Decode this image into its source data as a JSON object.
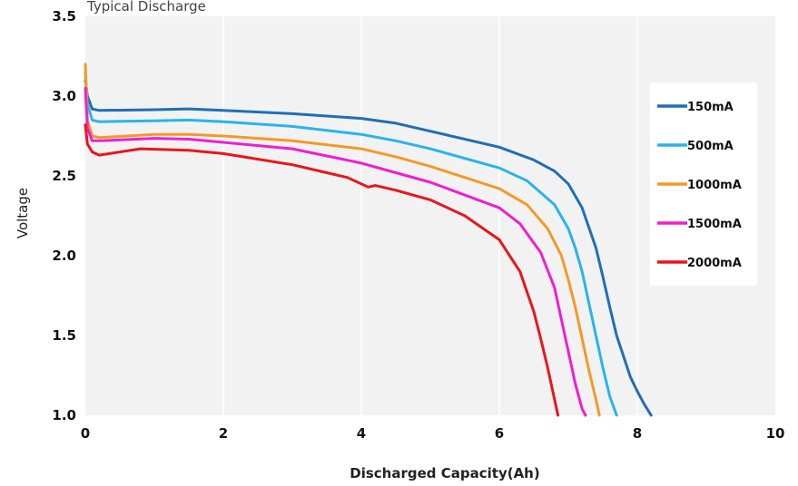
{
  "chart_data": {
    "type": "line",
    "title": "Typical Discharge",
    "xlabel": "Discharged Capacity(Ah)",
    "ylabel": "Voltage",
    "xlim": [
      0,
      10
    ],
    "ylim": [
      1.0,
      3.5
    ],
    "xticks": [
      "0",
      "2",
      "4",
      "6",
      "8",
      "10"
    ],
    "yticks": [
      "1.0",
      "1.5",
      "2.0",
      "2.5",
      "3.0",
      "3.5"
    ],
    "grid": "vertical",
    "plot_background": "#f2f2f2",
    "legend_position": "right",
    "series": [
      {
        "name": "150mA",
        "color": "#1f6fb5",
        "x": [
          0,
          0.03,
          0.1,
          0.2,
          1,
          1.5,
          2,
          3,
          4,
          4.5,
          5,
          6,
          6.5,
          6.8,
          7.0,
          7.2,
          7.4,
          7.5,
          7.6,
          7.7,
          7.8,
          7.9,
          8.0,
          8.1,
          8.2
        ],
        "y": [
          3.1,
          3.0,
          2.92,
          2.91,
          2.915,
          2.92,
          2.91,
          2.89,
          2.86,
          2.83,
          2.78,
          2.68,
          2.6,
          2.53,
          2.45,
          2.3,
          2.05,
          1.87,
          1.68,
          1.5,
          1.37,
          1.24,
          1.15,
          1.07,
          1.0
        ]
      },
      {
        "name": "500mA",
        "color": "#28b4ea",
        "x": [
          0,
          0.03,
          0.1,
          0.2,
          1,
          1.5,
          2,
          3,
          4,
          4.5,
          5,
          6,
          6.4,
          6.8,
          7.0,
          7.1,
          7.2,
          7.3,
          7.4,
          7.5,
          7.6,
          7.7
        ],
        "y": [
          3.15,
          2.95,
          2.85,
          2.84,
          2.845,
          2.85,
          2.84,
          2.81,
          2.76,
          2.72,
          2.67,
          2.55,
          2.47,
          2.32,
          2.17,
          2.05,
          1.9,
          1.7,
          1.5,
          1.3,
          1.12,
          1.0
        ]
      },
      {
        "name": "1000mA",
        "color": "#f39a26",
        "x": [
          0,
          0.03,
          0.1,
          0.2,
          1,
          1.5,
          2,
          3,
          4,
          4.5,
          5,
          6,
          6.4,
          6.7,
          6.9,
          7.0,
          7.1,
          7.2,
          7.3,
          7.4,
          7.45
        ],
        "y": [
          3.2,
          2.85,
          2.75,
          2.74,
          2.76,
          2.76,
          2.75,
          2.72,
          2.67,
          2.62,
          2.56,
          2.42,
          2.32,
          2.17,
          2.0,
          1.85,
          1.68,
          1.48,
          1.28,
          1.1,
          1.0
        ]
      },
      {
        "name": "1500mA",
        "color": "#ee1fd0",
        "x": [
          0,
          0.03,
          0.1,
          0.2,
          1,
          1.5,
          2,
          3,
          4,
          4.5,
          5,
          6,
          6.3,
          6.6,
          6.8,
          6.9,
          7.0,
          7.1,
          7.2,
          7.25
        ],
        "y": [
          3.05,
          2.8,
          2.72,
          2.72,
          2.735,
          2.73,
          2.71,
          2.67,
          2.58,
          2.52,
          2.46,
          2.3,
          2.2,
          2.02,
          1.8,
          1.6,
          1.4,
          1.2,
          1.04,
          1.0
        ]
      },
      {
        "name": "2000mA",
        "color": "#e8161b",
        "x": [
          0,
          0.03,
          0.1,
          0.2,
          0.8,
          1.5,
          2,
          3,
          3.5,
          3.8,
          4.0,
          4.1,
          4.2,
          4.5,
          5,
          5.5,
          6.0,
          6.3,
          6.5,
          6.6,
          6.7,
          6.8,
          6.85
        ],
        "y": [
          2.82,
          2.7,
          2.65,
          2.63,
          2.67,
          2.66,
          2.64,
          2.57,
          2.52,
          2.49,
          2.45,
          2.43,
          2.44,
          2.41,
          2.35,
          2.25,
          2.1,
          1.9,
          1.65,
          1.48,
          1.3,
          1.1,
          1.0
        ]
      }
    ]
  }
}
